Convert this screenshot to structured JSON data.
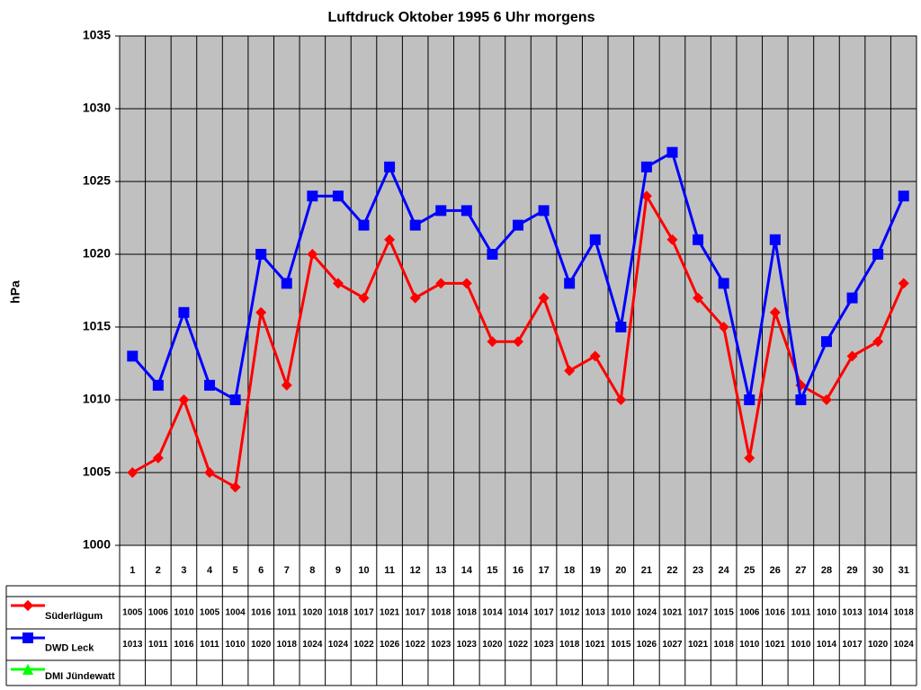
{
  "chart_data": {
    "type": "line",
    "title": "Luftdruck Oktober 1995 6 Uhr morgens",
    "y_label": "hPa",
    "categories": [
      "1",
      "2",
      "3",
      "4",
      "5",
      "6",
      "7",
      "8",
      "9",
      "10",
      "11",
      "12",
      "13",
      "14",
      "15",
      "16",
      "17",
      "18",
      "19",
      "20",
      "21",
      "22",
      "23",
      "24",
      "25",
      "26",
      "27",
      "28",
      "29",
      "30",
      "31"
    ],
    "series": [
      {
        "name": "Süderlügum",
        "color": "#ff0000",
        "marker": "diamond",
        "values": [
          1005,
          1006,
          1010,
          1005,
          1004,
          1016,
          1011,
          1020,
          1018,
          1017,
          1021,
          1017,
          1018,
          1018,
          1014,
          1014,
          1017,
          1012,
          1013,
          1010,
          1024,
          1021,
          1017,
          1015,
          1006,
          1016,
          1011,
          1010,
          1013,
          1014,
          1018
        ]
      },
      {
        "name": "DWD Leck",
        "color": "#0000ff",
        "marker": "square",
        "values": [
          1013,
          1011,
          1016,
          1011,
          1010,
          1020,
          1018,
          1024,
          1024,
          1022,
          1026,
          1022,
          1023,
          1023,
          1020,
          1022,
          1023,
          1018,
          1021,
          1015,
          1026,
          1027,
          1021,
          1018,
          1010,
          1021,
          1010,
          1014,
          1017,
          1020,
          1024
        ]
      },
      {
        "name": "DMI Jündewatt",
        "color": "#00ff00",
        "marker": "triangle",
        "values": [
          null,
          null,
          null,
          null,
          null,
          null,
          null,
          null,
          null,
          null,
          null,
          null,
          null,
          null,
          null,
          null,
          null,
          null,
          null,
          null,
          null,
          null,
          null,
          null,
          null,
          null,
          null,
          null,
          null,
          null,
          null
        ]
      }
    ],
    "ylim": [
      1000,
      1035
    ],
    "yticks": [
      1000,
      1005,
      1010,
      1015,
      1020,
      1025,
      1030,
      1035
    ],
    "grid": true,
    "plot_background": "#c0c0c0",
    "data_table": true
  }
}
